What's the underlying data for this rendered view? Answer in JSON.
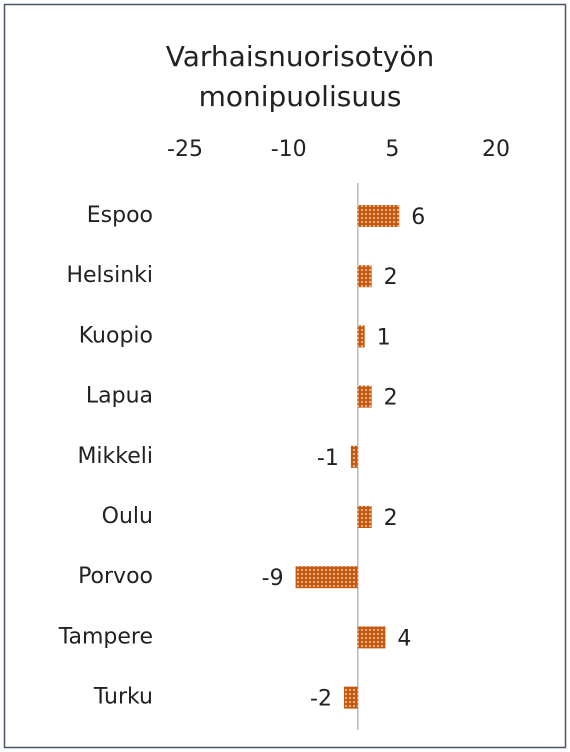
{
  "chart_data": {
    "type": "hbar",
    "title": "Varhaisnuorisotyön monipuolisuus",
    "categories": [
      "Espoo",
      "Helsinki",
      "Kuopio",
      "Lapua",
      "Mikkeli",
      "Oulu",
      "Porvoo",
      "Tampere",
      "Turku"
    ],
    "values": [
      6,
      2,
      1,
      2,
      -1,
      2,
      -9,
      4,
      -2
    ],
    "color": "#c55a11",
    "xlim": [
      -25,
      20
    ],
    "xticks": [
      -25,
      -10,
      5,
      20
    ],
    "grid": false
  }
}
